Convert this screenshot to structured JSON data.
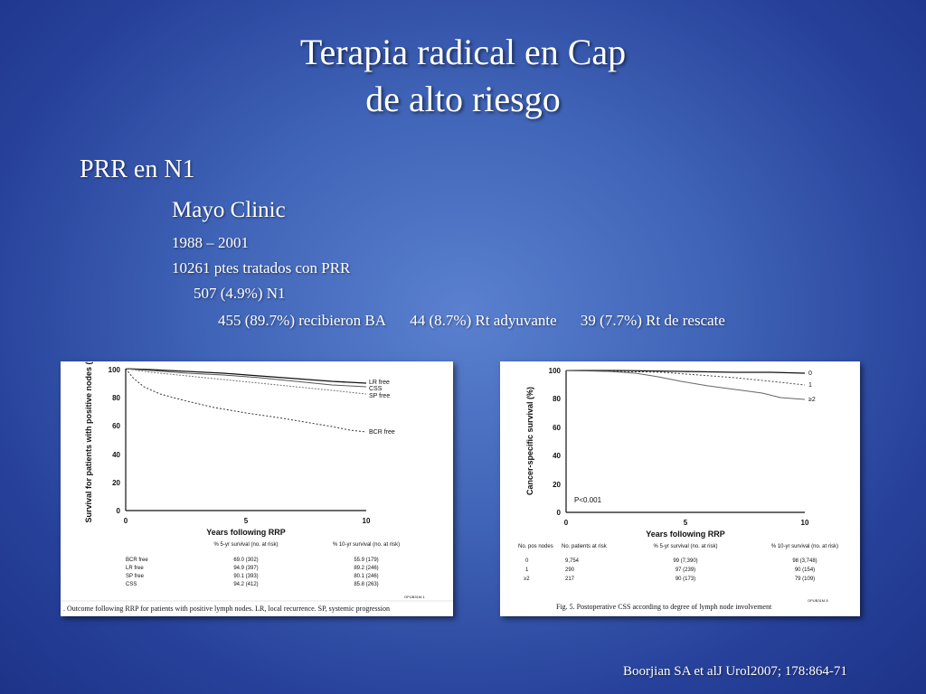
{
  "title": {
    "line1": "Terapia radical en Cap",
    "line2": "de alto riesgo"
  },
  "content": {
    "heading": "PRR en N1",
    "subheading": "Mayo Clinic",
    "period": "1988 – 2001",
    "patients": "10261 ptes  tratados con PRR",
    "n1": "507 (4.9%) N1",
    "breakdown": [
      "455 (89.7%) recibieron BA",
      "44 (8.7%) Rt adyuvante",
      "39 (7.7%) Rt de rescate"
    ]
  },
  "figure1": {
    "ylabel": "Survival for patients with positive nodes (%)",
    "xlabel": "Years following RRP",
    "yticks": [
      "0",
      "20",
      "40",
      "60",
      "80",
      "100"
    ],
    "xticks": [
      "0",
      "5",
      "10"
    ],
    "series_labels": [
      "LR free",
      "CSS",
      "SP free",
      "BCR free"
    ],
    "table_header": [
      "",
      "% 5-yr survival (no. at risk)",
      "% 10-yr survival (no. at risk)"
    ],
    "table_rows": [
      [
        "BCR free",
        "69.0 (302)",
        "55.9 (179)"
      ],
      [
        "LR free",
        "94.9 (397)",
        "89.2 (246)"
      ],
      [
        "SP free",
        "90.1 (393)",
        "80.1 (246)"
      ],
      [
        "CSS",
        "94.2 (412)",
        "85.8 (263)"
      ]
    ],
    "caption": ". Outcome following RRP for patients with positive lymph nodes. LR, local recurrence. SP, systemic progression",
    "figure_id": "OPUB31M-1"
  },
  "figure2": {
    "ylabel": "Cancer-specific survival (%)",
    "xlabel": "Years following RRP",
    "yticks": [
      "0",
      "20",
      "40",
      "60",
      "80",
      "100"
    ],
    "xticks": [
      "0",
      "5",
      "10"
    ],
    "series_labels": [
      "0",
      "1",
      "≥2"
    ],
    "pvalue": "P<0.001",
    "table_header": [
      "No. pos nodes",
      "No. patients at risk",
      "% 5-yr survival (no. at risk)",
      "% 10-yr survival (no. at risk)"
    ],
    "table_rows": [
      [
        "0",
        "9,754",
        "99 (7,390)",
        "98 (3,748)"
      ],
      [
        "1",
        "290",
        "97 (239)",
        "90 (154)"
      ],
      [
        "≥2",
        "217",
        "90 (173)",
        "79 (109)"
      ]
    ],
    "caption": "Fig. 5. Postoperative CSS according to degree of lymph node involvement",
    "figure_id": "OPUB31M-5"
  },
  "citation": "Boorjian SA et alJ Urol2007; 178:864-71"
}
